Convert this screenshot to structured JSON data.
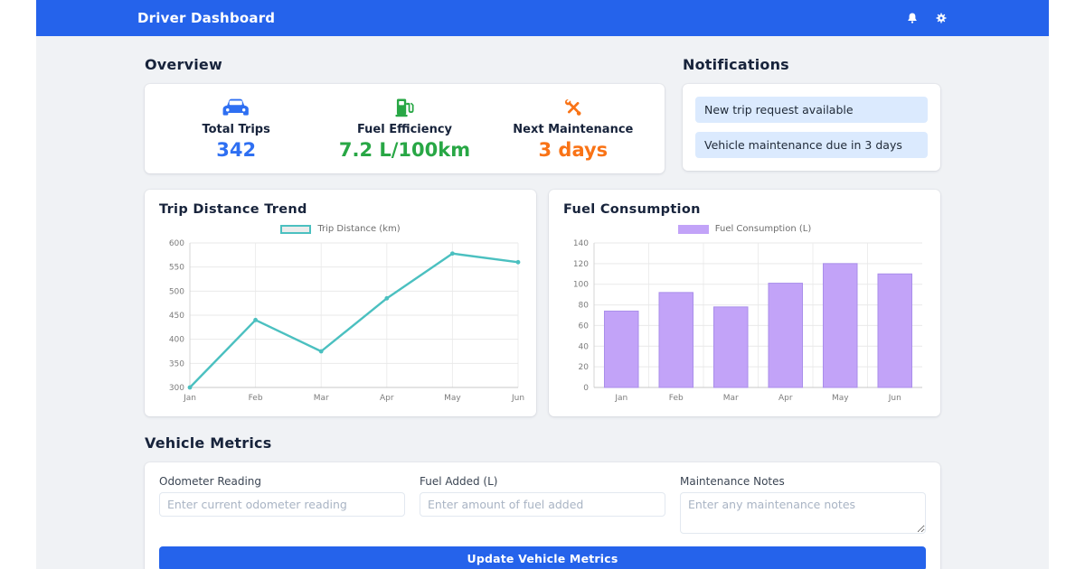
{
  "header": {
    "title": "Driver Dashboard"
  },
  "overview": {
    "heading": "Overview",
    "stats": [
      {
        "icon": "car-icon",
        "label": "Total Trips",
        "value": "342",
        "color": "#2e6ff2"
      },
      {
        "icon": "fuel-pump-icon",
        "label": "Fuel Efficiency",
        "value": "7.2 L/100km",
        "color": "#28a745"
      },
      {
        "icon": "tools-icon",
        "label": "Next Maintenance",
        "value": "3 days",
        "color": "#f97316"
      }
    ]
  },
  "notifications": {
    "heading": "Notifications",
    "items": [
      "New trip request available",
      "Vehicle maintenance due in 3 days"
    ]
  },
  "chart_data": [
    {
      "type": "line",
      "title": "Trip Distance Trend",
      "legend": "Trip Distance (km)",
      "categories": [
        "Jan",
        "Feb",
        "Mar",
        "Apr",
        "May",
        "Jun"
      ],
      "values": [
        300,
        440,
        375,
        485,
        578,
        560
      ],
      "ylim": [
        300,
        600
      ],
      "ytick": 50,
      "grid": true,
      "legend_position": "top",
      "line_color": "#4bc0c0"
    },
    {
      "type": "bar",
      "title": "Fuel Consumption",
      "legend": "Fuel Consumption (L)",
      "categories": [
        "Jan",
        "Feb",
        "Mar",
        "Apr",
        "May",
        "Jun"
      ],
      "values": [
        74,
        92,
        78,
        101,
        120,
        110
      ],
      "ylim": [
        0,
        140
      ],
      "ytick": 20,
      "grid": true,
      "legend_position": "top",
      "bar_fill": "#c2a3f8",
      "bar_border": "#a98eea"
    }
  ],
  "form": {
    "heading": "Vehicle Metrics",
    "fields": [
      {
        "label": "Odometer Reading",
        "placeholder": "Enter current odometer reading"
      },
      {
        "label": "Fuel Added (L)",
        "placeholder": "Enter amount of fuel added"
      },
      {
        "label": "Maintenance Notes",
        "placeholder": "Enter any maintenance notes"
      }
    ],
    "submit_label": "Update Vehicle Metrics"
  },
  "colors": {
    "header_bg": "#2563eb",
    "page_bg": "#f0f2f5",
    "notification_bg": "#dbeafe",
    "accent_blue": "#2e6ff2",
    "accent_green": "#28a745",
    "accent_orange": "#f97316",
    "line_teal": "#4bc0c0",
    "bar_purple": "#c2a3f8"
  }
}
